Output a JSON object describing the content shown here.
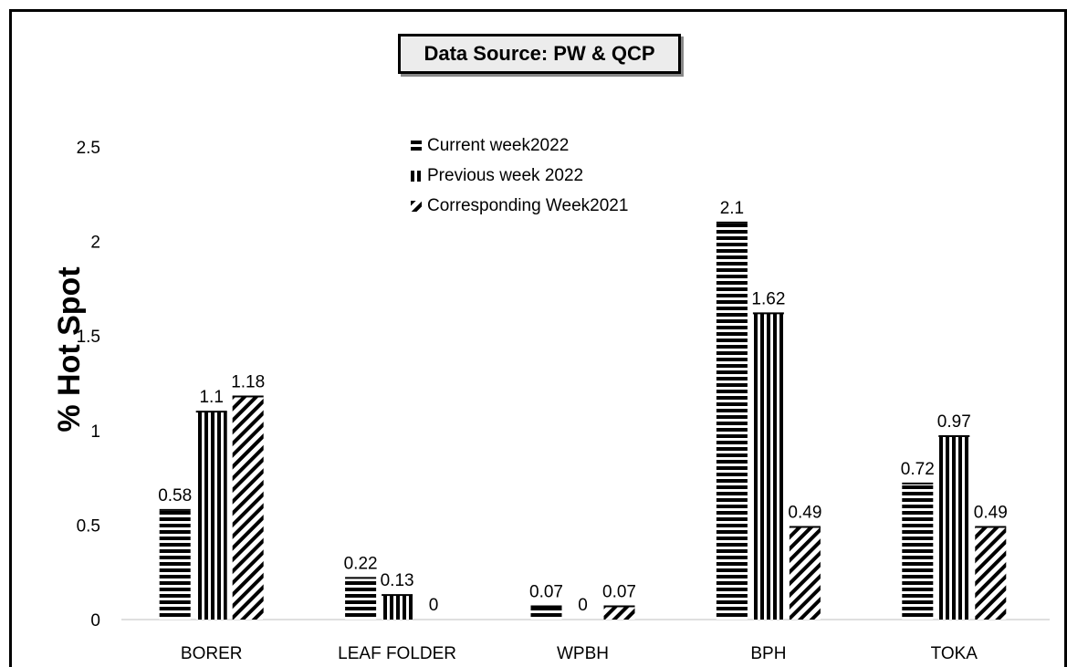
{
  "chart_data": {
    "type": "bar",
    "title": "Data Source: PW & QCP",
    "ylabel": "% Hot Spot",
    "xlabel": "",
    "ylim": [
      0,
      2.5
    ],
    "yticks": [
      "0",
      "0.5",
      "1",
      "1.5",
      "2",
      "2.5"
    ],
    "categories": [
      "BORER",
      "LEAF FOLDER",
      "WPBH",
      "BPH",
      "TOKA"
    ],
    "series": [
      {
        "name": "Current week2022",
        "pattern": "horizontal-stripes",
        "values": [
          0.58,
          0.22,
          0.07,
          2.1,
          0.72
        ]
      },
      {
        "name": "Previous week 2022",
        "pattern": "vertical-stripes",
        "values": [
          1.1,
          0.13,
          0,
          1.62,
          0.97
        ]
      },
      {
        "name": "Corresponding Week2021",
        "pattern": "diagonal-stripes",
        "values": [
          1.18,
          0,
          0.07,
          0.49,
          0.49
        ]
      }
    ],
    "data_labels": [
      [
        "0.58",
        "0.22",
        "0.07",
        "2.1",
        "0.72"
      ],
      [
        "1.1",
        "0.13",
        "0",
        "1.62",
        "0.97"
      ],
      [
        "1.18",
        "0",
        "0.07",
        "0.49",
        "0.49"
      ]
    ],
    "grid": false,
    "legend_position": "top-center"
  }
}
